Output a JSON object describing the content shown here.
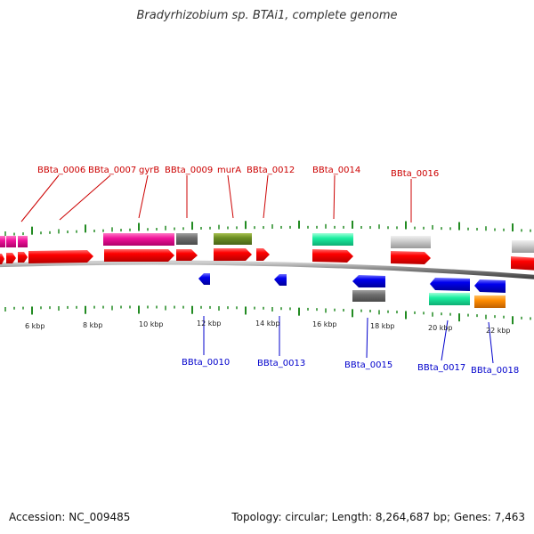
{
  "title": "Bradyrhizobium sp. BTAi1, complete genome",
  "footer": {
    "accession": "Accession: NC_009485",
    "stats": "Topology: circular; Length: 8,264,687 bp; Genes: 7,463"
  },
  "colors": {
    "forward_gene": "#ff0000",
    "reverse_gene": "#0000ee",
    "tick": "#228b22",
    "forward_label": "#cc0000",
    "reverse_label": "#0000cc",
    "backbone": "#777777"
  },
  "scale": {
    "labels": [
      "6 kbp",
      "8 kbp",
      "10 kbp",
      "12 kbp",
      "14 kbp",
      "16 kbp",
      "18 kbp",
      "20 kbp",
      "22 kbp"
    ]
  },
  "forward_labels": [
    "BBta_0006",
    "BBta_0007",
    "gyrB",
    "BBta_0009",
    "murA",
    "BBta_0012",
    "BBta_0014",
    "BBta_0016"
  ],
  "reverse_labels": [
    "BBta_0010",
    "BBta_0013",
    "BBta_0015",
    "BBta_0017",
    "BBta_0018"
  ]
}
